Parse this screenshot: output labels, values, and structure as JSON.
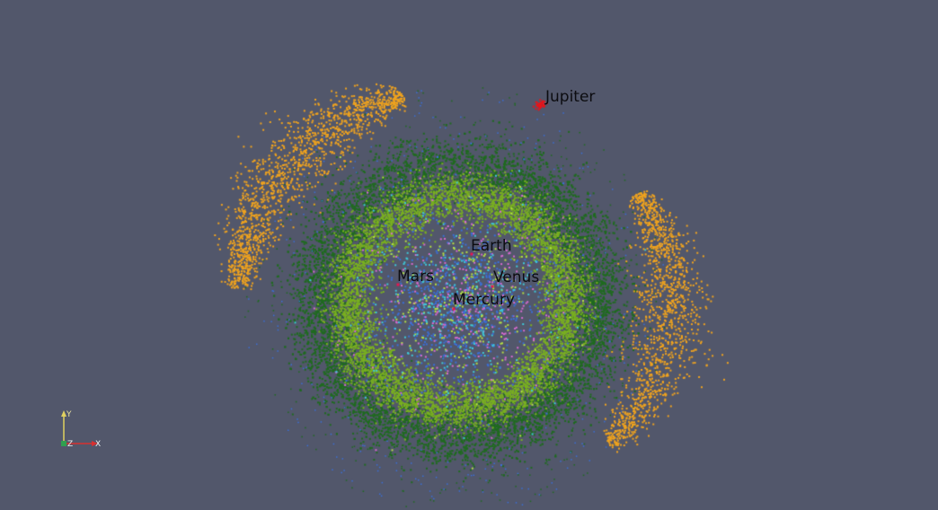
{
  "viewer": {
    "background_color": "#52576b",
    "label_color": "#0c0c10"
  },
  "planets": [
    {
      "name": "Jupiter",
      "color": "#e8141a"
    },
    {
      "name": "Earth",
      "color": "#e81450"
    },
    {
      "name": "Mars",
      "color": "#e81450"
    },
    {
      "name": "Venus",
      "color": "#e81450"
    },
    {
      "name": "Mercury",
      "color": "#e81450"
    }
  ],
  "populations": {
    "outer_trojans_color": "#f0a31e",
    "belt_outer_color": "#1f6b1f",
    "belt_mid_color": "#7ab020",
    "inner_blue_color": "#3a6fd8",
    "inner_cyan_color": "#3ec8d8",
    "inner_pink_color": "#d76ad0",
    "inner_lime_color": "#b4e044"
  },
  "axes": {
    "x_label": "X",
    "y_label": "Y",
    "z_label": "Z",
    "x_color": "#d83030",
    "y_color": "#e0d060",
    "z_color": "#30a050"
  }
}
